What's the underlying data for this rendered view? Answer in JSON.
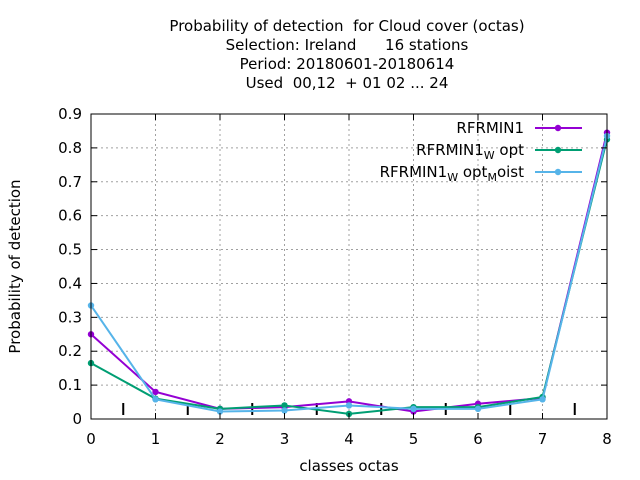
{
  "chart_data": {
    "type": "line",
    "title_lines": [
      "Probability of detection  for Cloud cover (octas)",
      "Selection: Ireland      16 stations",
      "Period: 20180601-20180614",
      "Used  00,12  + 01 02 ... 24"
    ],
    "xlabel": "classes octas",
    "ylabel": "Probability of detection",
    "xlim": [
      0,
      8
    ],
    "ylim": [
      0,
      0.9
    ],
    "x_ticks": [
      "0",
      "1",
      "2",
      "3",
      "4",
      "5",
      "6",
      "7",
      "8"
    ],
    "y_ticks": [
      "0",
      "0.1",
      "0.2",
      "0.3",
      "0.4",
      "0.5",
      "0.6",
      "0.7",
      "0.8",
      "0.9"
    ],
    "grid": true,
    "legend_position": "top-right",
    "x": [
      0,
      1,
      2,
      3,
      4,
      5,
      6,
      7,
      8
    ],
    "series": [
      {
        "name": "RFRMIN1",
        "legend_parts": [
          [
            "RFRMIN1",
            ""
          ]
        ],
        "color": "#9400d3",
        "values": [
          0.25,
          0.08,
          0.03,
          0.035,
          0.052,
          0.022,
          0.045,
          0.062,
          0.845
        ]
      },
      {
        "name": "RFRMIN1_W opt",
        "legend_parts": [
          [
            "RFRMIN1",
            ""
          ],
          [
            "W",
            "sub"
          ],
          [
            " opt",
            ""
          ]
        ],
        "color": "#009e73",
        "values": [
          0.165,
          0.06,
          0.03,
          0.04,
          0.015,
          0.035,
          0.035,
          0.065,
          0.825
        ]
      },
      {
        "name": "RFRMIN1_W opt_M oist",
        "legend_parts": [
          [
            "RFRMIN1",
            ""
          ],
          [
            "W",
            "sub"
          ],
          [
            " opt",
            ""
          ],
          [
            "M",
            "sub"
          ],
          [
            "oist",
            ""
          ]
        ],
        "color": "#56b4e9",
        "values": [
          0.335,
          0.058,
          0.022,
          0.025,
          0.04,
          0.03,
          0.03,
          0.058,
          0.835
        ]
      }
    ]
  }
}
